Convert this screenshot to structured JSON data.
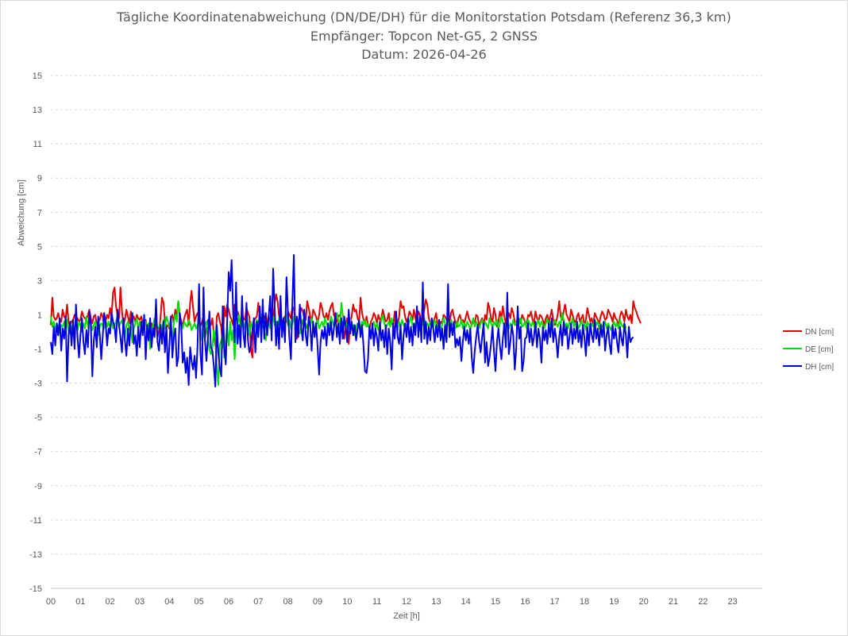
{
  "chart_data": {
    "type": "line",
    "title": "Tägliche Koordinatenabweichung (DN/DE/DH) für die Monitorstation Potsdam (Referenz 36,3 km)",
    "subtitle": "Empfänger: Topcon Net-G5, 2 GNSS",
    "date_line": "Datum: 2026-04-26",
    "xlabel": "Zeit [h]",
    "ylabel": "Abweichung [cm]",
    "xlim": [
      0,
      24
    ],
    "ylim": [
      -15,
      15
    ],
    "x_ticks": [
      "00",
      "01",
      "02",
      "03",
      "04",
      "05",
      "06",
      "07",
      "08",
      "09",
      "10",
      "11",
      "12",
      "13",
      "14",
      "15",
      "16",
      "17",
      "18",
      "19",
      "20",
      "21",
      "22",
      "23"
    ],
    "y_ticks": [
      15,
      13,
      11,
      9,
      7,
      5,
      3,
      1,
      -1,
      -3,
      -5,
      -7,
      -9,
      -11,
      -13,
      -15
    ],
    "grid": "horizontal-dashed",
    "legend_position": "right",
    "sample_interval_h": 0.05,
    "series": [
      {
        "name": "DN [cm]",
        "color": "#e00000",
        "values": [
          0.4,
          2.0,
          0.9,
          0.7,
          0.8,
          1.1,
          0.7,
          0.6,
          1.3,
          0.9,
          0.8,
          1.6,
          0.5,
          0.4,
          0.6,
          0.7,
          1.0,
          0.9,
          0.8,
          0.6,
          0.7,
          1.2,
          0.9,
          0.8,
          0.7,
          1.0,
          1.3,
          0.8,
          0.5,
          0.9,
          1.0,
          0.4,
          0.6,
          0.7,
          1.1,
          0.9,
          0.3,
          0.6,
          1.0,
          0.8,
          1.4,
          0.9,
          2.3,
          2.6,
          1.5,
          1.0,
          0.8,
          2.6,
          1.2,
          0.4,
          0.7,
          1.3,
          0.9,
          0.5,
          1.2,
          0.8,
          0.9,
          0.6,
          1.0,
          0.8,
          0.7,
          0.9,
          0.5,
          0.3,
          0.7,
          0.2,
          -0.5,
          0.3,
          0.5,
          -0.2,
          0.4,
          0.6,
          -0.3,
          0.1,
          0.8,
          2.0,
          1.7,
          0.6,
          0.3,
          0.4,
          0.2,
          0.8,
          1.0,
          0.5,
          1.3,
          0.9,
          1.8,
          1.0,
          0.6,
          0.4,
          0.8,
          1.1,
          1.3,
          0.4,
          1.7,
          2.4,
          1.4,
          0.6,
          0.9,
          1.1,
          0.8,
          0.3,
          0.6,
          0.9,
          -0.4,
          0.2,
          0.7,
          0.5,
          0.4,
          0.8,
          -0.2,
          -0.8,
          0.9,
          1.1,
          0.6,
          0.3,
          -0.9,
          1.5,
          0.9,
          1.6,
          1.3,
          0.9,
          0.7,
          0.4,
          1.6,
          0.7,
          1.2,
          0.9,
          0.5,
          1.1,
          0.8,
          0.7,
          1.4,
          1.1,
          0.9,
          -1.0,
          -1.5,
          0.6,
          0.8,
          0.9,
          1.7,
          0.8,
          0.4,
          1.1,
          0.9,
          0.7,
          0.5,
          1.0,
          0.3,
          1.2,
          0.8,
          1.6,
          2.2,
          1.8,
          0.9,
          0.7,
          0.5,
          0.8,
          0.9,
          0.6,
          1.2,
          1.0,
          0.8,
          1.5,
          1.3,
          0.6,
          -0.4,
          0.5,
          1.0,
          1.4,
          1.2,
          0.8,
          0.7,
          1.8,
          1.4,
          0.9,
          0.6,
          1.3,
          1.1,
          0.9,
          0.5,
          1.0,
          1.7,
          1.4,
          0.9,
          0.8,
          1.1,
          0.7,
          1.2,
          1.5,
          1.7,
          1.0,
          0.8,
          0.6,
          0.9,
          1.0,
          0.7,
          0.5,
          -0.4,
          0.3,
          0.8,
          -0.7,
          0.5,
          0.9,
          1.6,
          1.2,
          1.3,
          0.8,
          0.6,
          2.0,
          1.1,
          0.7,
          0.5,
          0.9,
          0.4,
          0.2,
          0.6,
          0.8,
          1.1,
          0.9,
          0.5,
          1.0,
          0.7,
          0.8,
          1.3,
          0.9,
          0.6,
          0.7,
          1.1,
          0.4,
          0.6,
          0.3,
          1.2,
          0.8,
          0.5,
          0.9,
          1.8,
          1.4,
          1.5,
          0.9,
          0.6,
          0.8,
          1.2,
          1.0,
          0.7,
          1.3,
          0.8,
          0.5,
          1.2,
          1.0,
          0.4,
          0.8,
          1.3,
          1.9,
          1.6,
          0.8,
          0.5,
          0.3,
          0.6,
          0.8,
          1.1,
          0.4,
          0.2,
          0.6,
          0.5,
          1.0,
          0.9,
          0.7,
          0.8,
          0.4,
          1.1,
          1.3,
          0.9,
          0.6,
          0.3,
          0.8,
          1.0,
          0.6,
          0.7,
          0.5,
          0.9,
          1.2,
          0.8,
          0.6,
          0.4,
          0.7,
          0.5,
          1.0,
          0.9,
          0.3,
          0.6,
          0.8,
          0.4,
          1.0,
          0.7,
          1.7,
          1.4,
          0.8,
          0.6,
          1.4,
          1.0,
          0.3,
          0.6,
          1.2,
          0.8,
          1.5,
          0.9,
          0.5,
          0.7,
          1.1,
          0.8,
          1.4,
          1.1,
          0.6,
          0.4,
          0.9,
          0.7,
          0.5,
          1.0,
          0.8,
          0.6,
          0.4,
          1.0,
          0.9,
          1.2,
          0.7,
          0.5,
          1.2,
          0.8,
          0.6,
          1.0,
          0.9,
          0.7,
          0.4,
          0.8,
          1.0,
          0.6,
          0.9,
          1.3,
          0.7,
          0.4,
          0.6,
          1.0,
          1.8,
          0.9,
          0.7,
          1.2,
          1.6,
          1.0,
          0.8,
          0.6,
          1.3,
          1.0,
          0.7,
          0.5,
          0.9,
          1.1,
          0.6,
          0.8,
          1.0,
          0.4,
          0.7,
          1.4,
          1.0,
          0.6,
          0.8,
          0.4,
          1.1,
          0.9,
          0.7,
          0.5,
          0.9,
          1.2,
          1.0,
          0.7,
          0.8,
          1.3,
          1.1,
          0.9,
          0.6,
          1.1,
          0.8,
          0.7,
          0.3,
          0.9,
          1.2,
          1.0,
          0.6,
          1.3,
          0.9,
          0.7,
          1.0,
          0.5,
          1.8,
          1.4,
          1.2,
          0.9,
          0.7,
          0.5
        ]
      },
      {
        "name": "DE [cm]",
        "color": "#00e000",
        "values": [
          0.9,
          0.3,
          0.6,
          0.0,
          0.5,
          0.2,
          -0.1,
          0.4,
          0.3,
          0.6,
          0.1,
          0.7,
          0.0,
          -0.1,
          0.3,
          0.4,
          0.2,
          0.5,
          0.1,
          0.6,
          0.4,
          0.0,
          0.5,
          0.2,
          0.9,
          0.3,
          0.8,
          0.5,
          0.1,
          0.4,
          0.6,
          0.2,
          -0.2,
          0.3,
          0.5,
          0.4,
          0.2,
          0.7,
          0.3,
          0.6,
          0.1,
          0.8,
          0.2,
          0.4,
          0.6,
          0.9,
          0.3,
          0.5,
          0.7,
          0.2,
          -0.3,
          0.4,
          0.6,
          0.1,
          0.3,
          -0.6,
          0.2,
          0.5,
          0.8,
          0.2,
          0.6,
          0.3,
          0.1,
          0.4,
          0.6,
          0.2,
          0.5,
          -1.0,
          0.1,
          0.4,
          0.8,
          0.6,
          0.2,
          0.3,
          0.5,
          0.1,
          0.7,
          0.2,
          0.9,
          0.6,
          0.3,
          0.4,
          -0.7,
          0.5,
          1.0,
          0.6,
          1.8,
          0.9,
          0.4,
          0.2,
          0.6,
          0.4,
          0.3,
          0.7,
          0.5,
          0.1,
          0.3,
          0.5,
          0.2,
          0.4,
          0.6,
          0.3,
          -0.5,
          -0.2,
          0.4,
          0.6,
          -0.3,
          -1.0,
          -1.3,
          -0.9,
          0.1,
          -0.4,
          -2.0,
          -3.1,
          -0.8,
          -0.5,
          -0.1,
          -1.5,
          -0.6,
          0.3,
          -0.8,
          0.6,
          -0.5,
          0.1,
          -1.6,
          0.0,
          0.4,
          1.0,
          0.3,
          0.6,
          0.1,
          0.5,
          0.8,
          0.4,
          -0.2,
          0.6,
          0.2,
          0.5,
          0.3,
          0.7,
          0.4,
          1.0,
          0.6,
          0.3,
          0.1,
          -0.5,
          0.3,
          0.7,
          0.2,
          0.5,
          0.9,
          0.4,
          0.6,
          0.2,
          0.8,
          0.3,
          0.1,
          0.5,
          0.6,
          1.0,
          0.4,
          0.7,
          0.2,
          0.5,
          0.9,
          0.3,
          0.6,
          0.1,
          -0.1,
          0.4,
          0.7,
          0.3,
          0.5,
          0.2,
          0.6,
          0.3,
          0.8,
          0.4,
          0.1,
          0.5,
          0.7,
          0.2,
          0.4,
          0.6,
          0.3,
          0.8,
          0.5,
          0.2,
          0.4,
          0.9,
          0.6,
          0.3,
          0.5,
          1.1,
          0.7,
          0.2,
          1.7,
          1.0,
          0.4,
          0.6,
          0.3,
          0.5,
          0.8,
          0.2,
          0.4,
          -0.2,
          0.3,
          0.5,
          0.2,
          0.1,
          0.6,
          0.4,
          0.7,
          0.3,
          0.5,
          0.2,
          -0.3,
          0.4,
          0.6,
          0.2,
          0.5,
          0.1,
          0.3,
          0.7,
          1.0,
          0.5,
          0.2,
          0.4,
          0.6,
          0.3,
          0.8,
          0.4,
          0.2,
          0.5,
          0.1,
          0.6,
          0.3,
          0.7,
          0.4,
          0.2,
          0.5,
          0.3,
          0.6,
          0.9,
          0.4,
          0.2,
          0.5,
          0.7,
          0.3,
          0.1,
          0.6,
          0.4,
          0.8,
          0.2,
          0.5,
          0.3,
          0.6,
          0.4,
          0.2,
          0.7,
          0.5,
          0.3,
          0.6,
          0.1,
          0.4,
          0.8,
          0.5,
          0.2,
          0.6,
          0.3,
          0.7,
          0.4,
          0.5,
          0.2,
          0.6,
          0.3,
          0.4,
          0.7,
          0.2,
          0.5,
          0.3,
          0.6,
          0.4,
          0.1,
          0.5,
          0.8,
          0.3,
          0.6,
          0.4,
          0.2,
          0.5,
          0.7,
          0.3,
          0.6,
          0.4,
          0.2,
          0.8,
          0.5,
          0.3,
          0.6,
          0.4,
          0.7,
          0.2,
          0.5,
          0.9,
          0.6,
          0.3,
          0.4,
          0.6,
          0.2,
          0.5,
          0.3,
          0.7,
          0.4,
          0.6,
          0.2,
          0.5,
          0.8,
          0.3,
          0.4,
          0.6,
          0.2,
          0.7,
          0.5,
          0.3,
          0.6,
          0.4,
          0.1,
          0.5,
          0.7,
          0.3,
          0.6,
          0.4,
          0.2,
          0.5,
          0.8,
          0.3,
          0.6,
          0.2,
          0.4,
          0.7,
          0.5,
          0.3,
          0.6,
          0.4,
          1.1,
          0.7,
          0.3,
          0.5,
          0.2,
          0.6,
          0.4,
          0.8,
          0.3,
          0.5,
          0.6,
          0.2,
          0.4,
          0.7,
          0.3,
          0.5,
          0.1,
          0.6,
          0.4,
          0.2,
          0.5,
          0.3,
          0.7,
          0.4,
          0.6,
          0.2,
          0.5,
          0.3,
          0.4,
          0.6,
          0.2,
          0.5,
          0.3,
          0.1,
          0.4,
          0.6,
          0.3,
          0.5,
          0.2,
          0.7,
          0.4,
          0.3,
          0.5,
          0.2
        ]
      },
      {
        "name": "DH [cm]",
        "color": "#0000e0",
        "values": [
          -0.6,
          -1.3,
          0.3,
          -0.8,
          0.5,
          -0.2,
          0.8,
          -1.1,
          0.2,
          -0.4,
          0.9,
          -2.9,
          -0.2,
          0.6,
          -0.8,
          0.7,
          -1.0,
          1.6,
          -0.3,
          -1.5,
          -0.2,
          0.8,
          -0.6,
          -1.3,
          0.1,
          -0.9,
          1.2,
          0.4,
          -2.6,
          -0.5,
          0.3,
          -0.9,
          0.9,
          -0.1,
          -1.6,
          -0.3,
          1.1,
          0.5,
          -0.8,
          0.2,
          -0.1,
          1.1,
          0.6,
          0.3,
          -0.6,
          1.3,
          0.4,
          -0.3,
          -1.2,
          0.8,
          -0.5,
          -1.4,
          0.2,
          -0.8,
          0.5,
          1.1,
          -0.7,
          -0.2,
          -1.4,
          0.3,
          -0.9,
          0.6,
          -0.2,
          1.0,
          -1.6,
          0.4,
          -0.5,
          0.8,
          -0.9,
          0.2,
          -0.3,
          1.9,
          -0.6,
          -1.1,
          0.4,
          -0.7,
          0.6,
          -1.2,
          0.3,
          -2.4,
          -0.8,
          0.9,
          -1.5,
          -0.3,
          0.2,
          -2.0,
          -1.5,
          1.1,
          0.4,
          -1.8,
          -1.2,
          -2.4,
          -1.5,
          -3.1,
          -0.9,
          -1.7,
          -2.2,
          -1.4,
          -2.7,
          -0.8,
          2.8,
          -1.3,
          -2.5,
          2.6,
          -0.5,
          -1.7,
          -0.3,
          1.2,
          -0.9,
          -1.1,
          -2.0,
          -3.2,
          0.4,
          -1.2,
          -2.1,
          -2.6,
          1.5,
          -0.8,
          -1.9,
          0.6,
          3.5,
          2.4,
          4.2,
          1.2,
          -0.6,
          2.9,
          -0.7,
          0.4,
          -0.9,
          2.1,
          -0.2,
          -0.9,
          1.7,
          -0.5,
          -1.2,
          -0.8,
          0.1,
          0.8,
          -1.2,
          0.6,
          -0.3,
          1.5,
          -0.6,
          1.9,
          -0.4,
          1.1,
          -0.2,
          0.9,
          2.1,
          -0.5,
          3.7,
          1.4,
          -0.8,
          0.6,
          -1.0,
          2.1,
          -0.3,
          0.8,
          -0.6,
          3.2,
          1.1,
          -0.4,
          -1.6,
          1.8,
          4.5,
          -0.6,
          0.9,
          -0.3,
          1.6,
          0.2,
          -0.5,
          1.3,
          -0.2,
          -0.8,
          0.9,
          0.4,
          -1.1,
          0.6,
          -0.3,
          0.5,
          -0.9,
          -2.5,
          -0.6,
          0.1,
          -0.4,
          0.3,
          -0.8,
          0.5,
          -0.2,
          0.6,
          -0.5,
          0.2,
          1.1,
          -0.3,
          0.5,
          -0.7,
          0.8,
          -0.4,
          0.9,
          0.3,
          -0.6,
          1.3,
          -0.1,
          0.6,
          -0.2,
          0.4,
          -0.5,
          0.2,
          0.7,
          -0.3,
          0.4,
          -0.9,
          -2.3,
          -2.4,
          -1.6,
          0.3,
          -0.4,
          0.5,
          -0.8,
          0.2,
          -0.3,
          -1.1,
          0.6,
          -0.5,
          0.1,
          -0.9,
          0.4,
          -1.3,
          0.2,
          -0.6,
          -2.2,
          0.5,
          -0.4,
          1.2,
          -0.3,
          -0.7,
          0.4,
          -1.6,
          -0.2,
          0.5,
          -0.3,
          0.8,
          -0.6,
          0.3,
          -0.8,
          0.5,
          -0.2,
          1.5,
          -0.3,
          0.9,
          -0.6,
          2.9,
          -0.4,
          0.6,
          -0.7,
          0.3,
          -0.5,
          0.8,
          0.2,
          -0.6,
          0.4,
          -0.3,
          0.7,
          -0.5,
          0.2,
          -1.0,
          0.4,
          -0.6,
          2.8,
          -0.3,
          0.5,
          -0.2,
          0.6,
          -0.9,
          -0.4,
          -0.8,
          -0.3,
          -1.7,
          -0.6,
          0.3,
          -0.5,
          0.1,
          -0.7,
          0.2,
          -1.5,
          -2.4,
          -1.1,
          -0.3,
          0.4,
          -0.6,
          -1.2,
          -0.3,
          0.5,
          -1.8,
          -0.6,
          -2.0,
          -1.5,
          -0.7,
          0.3,
          -1.1,
          -2.3,
          -0.6,
          0.2,
          -0.8,
          -1.6,
          -0.4,
          0.5,
          -0.9,
          2.3,
          -1.3,
          -0.6,
          0.4,
          -0.2,
          -2.2,
          -1.0,
          1.5,
          -0.4,
          0.3,
          -2.3,
          -1.7,
          -0.4,
          -0.3,
          0.5,
          -0.6,
          0.2,
          -0.8,
          -0.3,
          0.6,
          -0.9,
          0.2,
          -0.4,
          -1.8,
          0.3,
          -0.5,
          0.1,
          -0.7,
          0.5,
          -0.3,
          0.8,
          -0.6,
          0.2,
          -0.4,
          -1.5,
          -0.3,
          0.4,
          -0.8,
          0.6,
          -0.2,
          0.3,
          -1.0,
          -0.3,
          0.5,
          -0.7,
          0.2,
          -0.4,
          0.6,
          -0.6,
          0.1,
          -0.9,
          0.4,
          -0.3,
          -1.4,
          0.3,
          -0.8,
          0.5,
          -0.2,
          -0.6,
          0.7,
          -0.4,
          0.2,
          -0.8,
          0.4,
          -0.3,
          0.6,
          -1.1,
          -0.2,
          0.3,
          -0.7,
          -1.3,
          0.4,
          -0.4,
          0.2,
          -0.6,
          -1.2,
          0.3,
          -0.4,
          -0.8,
          0.5,
          -0.2,
          -1.5,
          0.3,
          -0.6,
          -0.4,
          -0.3
        ]
      }
    ]
  }
}
